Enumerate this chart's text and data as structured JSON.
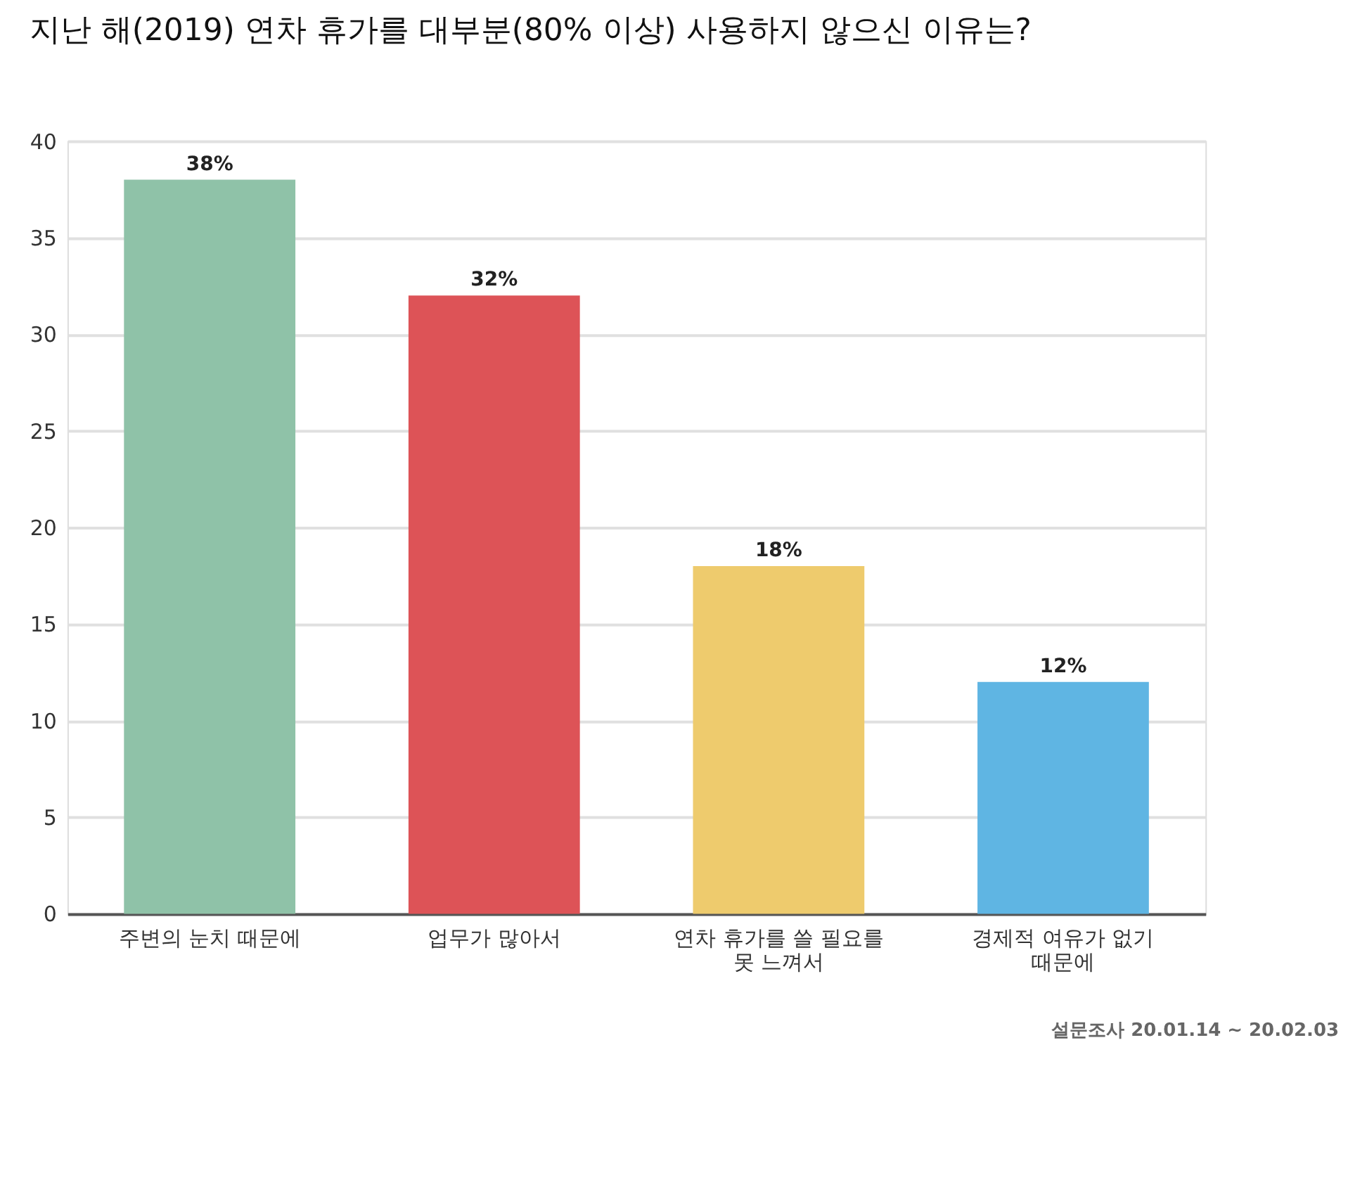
{
  "chart_data": {
    "type": "bar",
    "title": "지난 해(2019) 연차 휴가를  대부분(80% 이상) 사용하지 않으신 이유는?",
    "categories": [
      "주변의 눈치 때문에",
      "업무가 많아서",
      "연차 휴가를 쓸 필요를 못 느껴서",
      "경제적 여유가 없기 때문에"
    ],
    "values": [
      38,
      32,
      18,
      12
    ],
    "colors": [
      "#8fc2a8",
      "#dd5357",
      "#eecb6d",
      "#5fb5e3"
    ],
    "value_labels": [
      "38%",
      "32%",
      "18%",
      "12%"
    ],
    "ylim": [
      0,
      40
    ],
    "yticks": [
      0,
      5,
      10,
      15,
      20,
      25,
      30,
      35,
      40
    ],
    "grid": "y",
    "annotations": [
      "설문조사 20.01.14 ~ 20.02.03"
    ]
  }
}
